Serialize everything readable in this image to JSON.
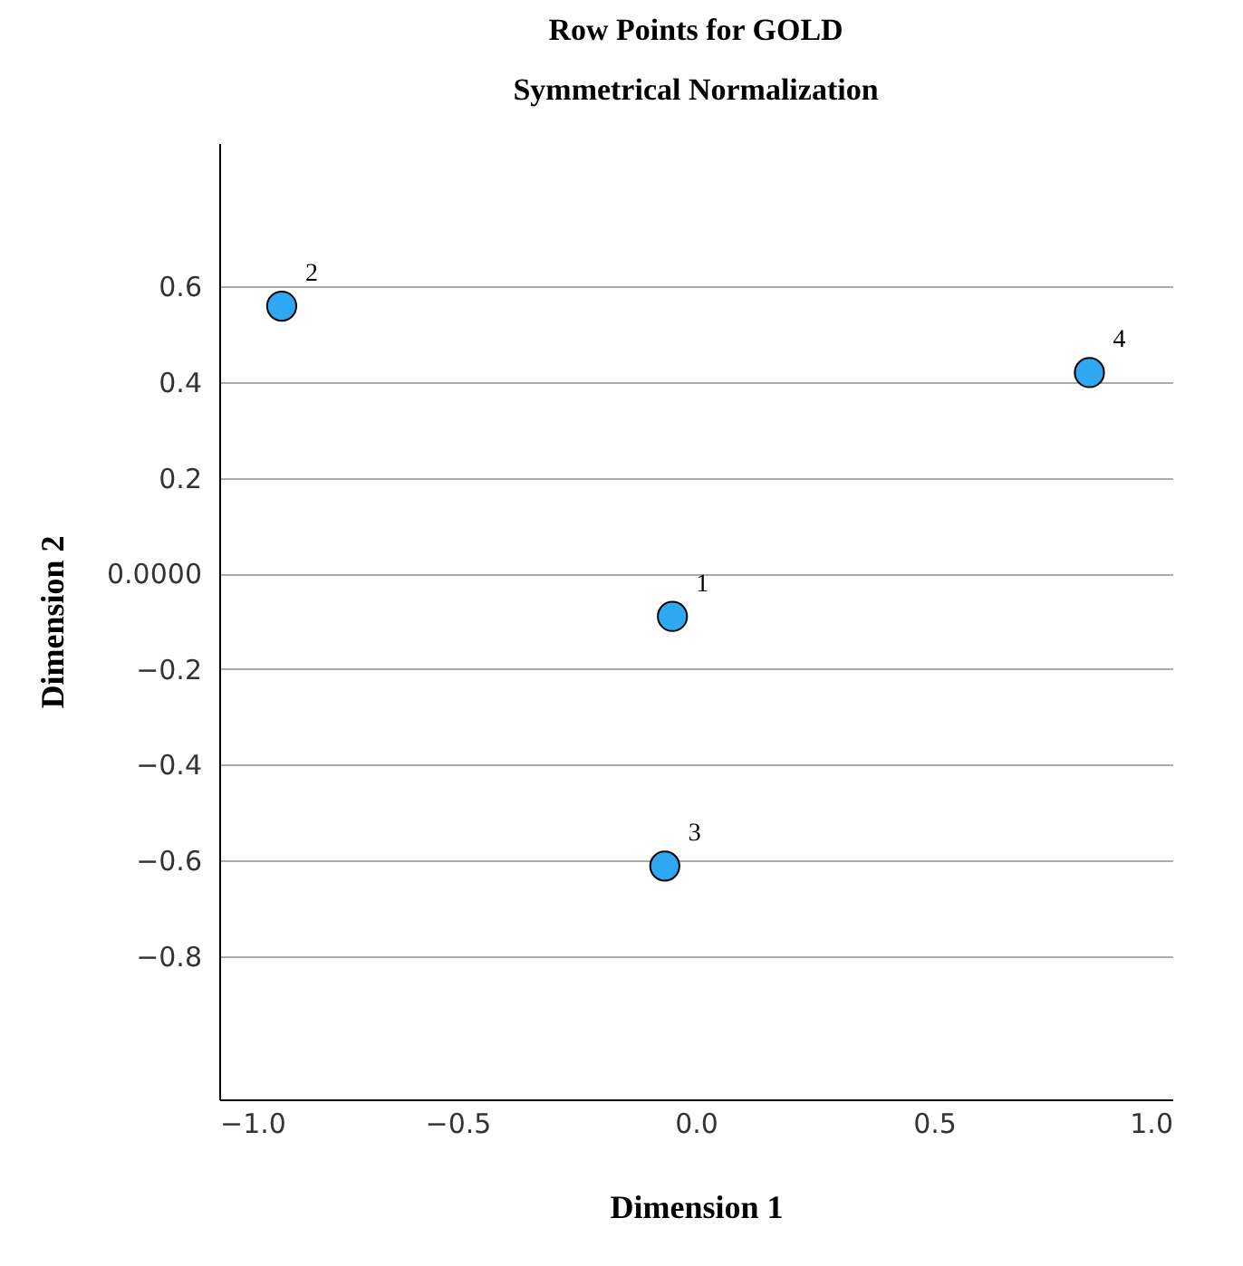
{
  "chart_data": {
    "type": "scatter",
    "title": "Row Points for GOLD",
    "subtitle": "Symmetrical Normalization",
    "xlabel": "Dimension 1",
    "ylabel": "Dimension 2",
    "x": [
      -0.049,
      -0.869,
      -0.065,
      0.826
    ],
    "series": [
      {
        "color": "#2ea8f0",
        "values": [
          -0.09,
          0.559,
          -0.612,
          0.42
        ]
      }
    ],
    "annotations": [
      {
        "text": "1",
        "x": -0.049,
        "y": -0.09
      },
      {
        "text": "2",
        "x": -0.869,
        "y": 0.559
      },
      {
        "text": "3",
        "x": -0.065,
        "y": -0.612
      },
      {
        "text": "4",
        "x": 0.826,
        "y": 0.42
      }
    ],
    "xlim": [
      -1.0,
      1.0
    ],
    "xticks": [
      {
        "value": -1.0,
        "label": "−1.0"
      },
      {
        "value": -0.5,
        "label": "−0.5"
      },
      {
        "value": 0.0,
        "label": "0.0"
      },
      {
        "value": 0.5,
        "label": "0.5"
      },
      {
        "value": 1.0,
        "label": "1.0"
      }
    ],
    "ylim": [
      -1.1,
      0.9
    ],
    "yticks": [
      0.6,
      0.4,
      0.2,
      {
        "value": 0.0,
        "label": "0.0000"
      },
      {
        "value": -0.2,
        "label": "−0.2"
      },
      {
        "value": -0.4,
        "label": "−0.4"
      },
      {
        "value": -0.6,
        "label": "−0.6"
      },
      {
        "value": -0.8,
        "label": "−0.8"
      }
    ],
    "grid": "y",
    "marker": "circle"
  }
}
